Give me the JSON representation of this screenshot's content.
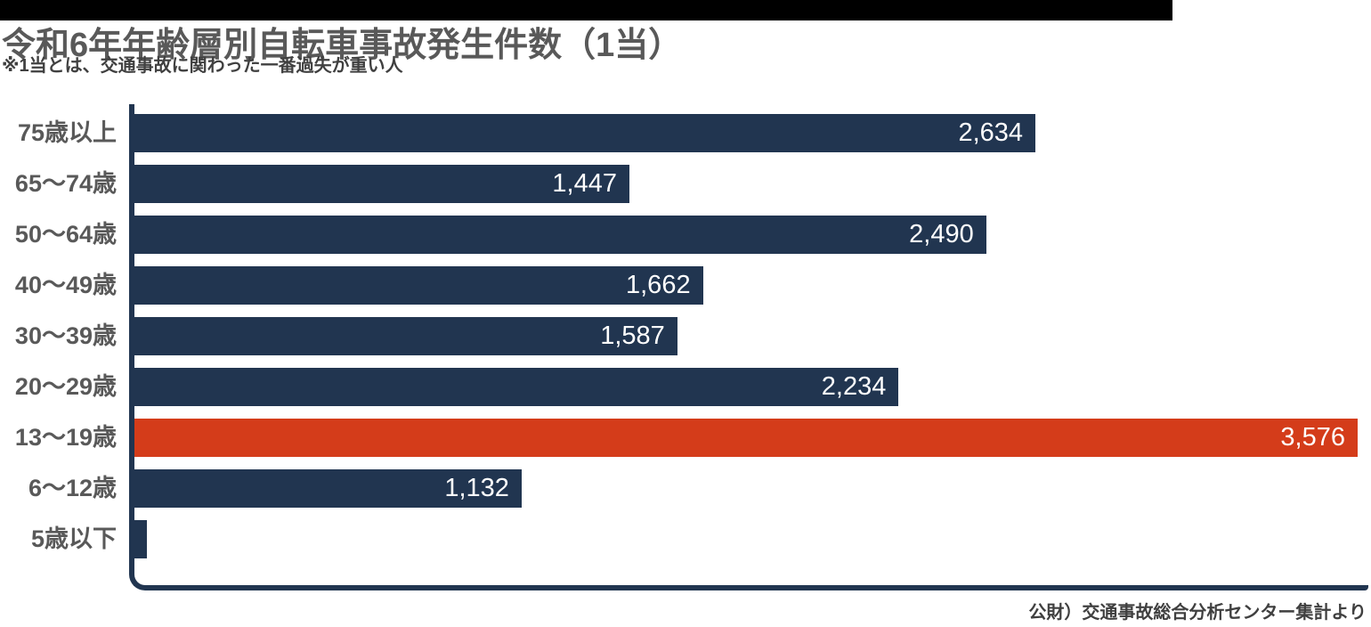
{
  "header": {
    "title": "令和6年年齢層別自転車事故発生件数（1当）",
    "subtitle": "※1当とは、交通事故に関わった一番過失が重い人"
  },
  "footer": {
    "source": "公財）交通事故総合分析センター集計より"
  },
  "colors": {
    "bar": "#213550",
    "highlight": "#d43c1a",
    "label_gray": "#595959",
    "text_dark": "#404040",
    "black_bar": "#000000"
  },
  "chart_data": {
    "type": "bar",
    "orientation": "horizontal",
    "title": "令和6年年齢層別自転車事故発生件数（1当）",
    "note": "※1当とは、交通事故に関わった一番過失が重い人",
    "source": "公財）交通事故総合分析センター集計より",
    "categories": [
      "75歳以上",
      "65〜74歳",
      "50〜64歳",
      "40〜49歳",
      "30〜39歳",
      "20〜29歳",
      "13〜19歳",
      "6〜12歳",
      "5歳以下"
    ],
    "values": [
      2634,
      1447,
      2490,
      1662,
      1587,
      2234,
      3576,
      1132,
      14
    ],
    "value_labels": [
      "2,634",
      "1,447",
      "2,490",
      "1,662",
      "1,587",
      "2,234",
      "3,576",
      "1,132",
      "14"
    ],
    "highlight_index": 6,
    "xlim": [
      0,
      3576
    ],
    "grid": false,
    "legend": false,
    "value_labels_position": "inside-end"
  }
}
